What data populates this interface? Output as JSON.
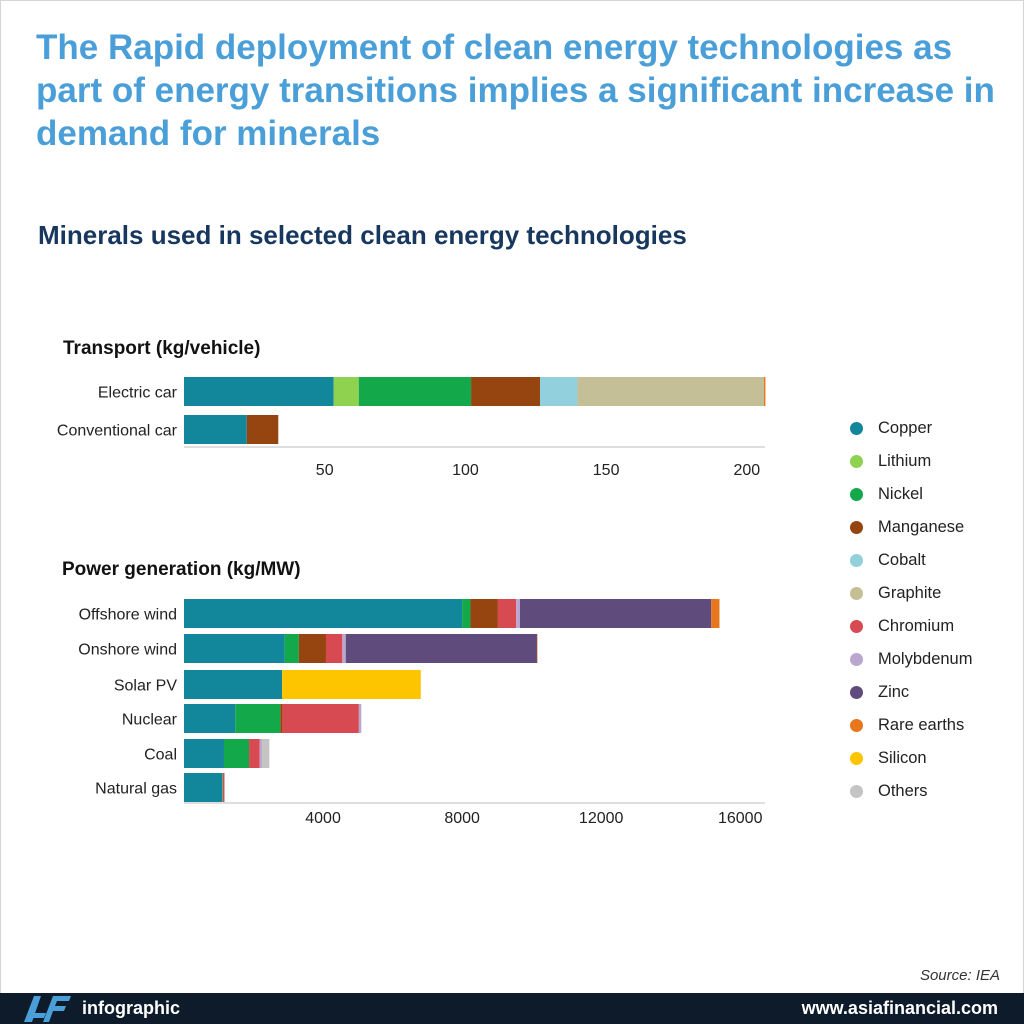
{
  "headline": "The Rapid deployment of clean energy technologies as part of energy transitions implies a significant increase in demand for minerals",
  "subtitle": "Minerals used in selected clean energy technologies",
  "minerals": [
    "Copper",
    "Lithium",
    "Nickel",
    "Manganese",
    "Cobalt",
    "Graphite",
    "Chromium",
    "Molybdenum",
    "Zinc",
    "Rare earths",
    "Silicon",
    "Others"
  ],
  "colors": {
    "Copper": "#12869b",
    "Lithium": "#8ed24f",
    "Nickel": "#13a84a",
    "Manganese": "#974510",
    "Cobalt": "#92d0dd",
    "Graphite": "#c5bf98",
    "Chromium": "#d84a52",
    "Molybdenum": "#b9a7d0",
    "Zinc": "#604b7d",
    "Rare earths": "#e8761c",
    "Silicon": "#fdc500",
    "Others": "#c4c4c4"
  },
  "chart_data": [
    {
      "type": "bar",
      "orientation": "horizontal",
      "stacked": true,
      "title": "Transport (kg/vehicle)",
      "categories": [
        "Electric car",
        "Conventional car"
      ],
      "xlim": [
        0,
        210
      ],
      "ticks": [
        50,
        100,
        150,
        200
      ],
      "tick_labels": [
        "50",
        "100",
        "150",
        "200"
      ],
      "series": [
        {
          "name": "Copper",
          "values": [
            53.2,
            22.3
          ]
        },
        {
          "name": "Lithium",
          "values": [
            8.9,
            0
          ]
        },
        {
          "name": "Nickel",
          "values": [
            39.9,
            0
          ]
        },
        {
          "name": "Manganese",
          "values": [
            24.5,
            11.2
          ]
        },
        {
          "name": "Cobalt",
          "values": [
            13.3,
            0
          ]
        },
        {
          "name": "Graphite",
          "values": [
            66.3,
            0
          ]
        },
        {
          "name": "Rare earths",
          "values": [
            0.5,
            0
          ]
        }
      ]
    },
    {
      "type": "bar",
      "orientation": "horizontal",
      "stacked": true,
      "title": "Power generation (kg/MW)",
      "categories": [
        "Offshore wind",
        "Onshore wind",
        "Solar PV",
        "Nuclear",
        "Coal",
        "Natural gas"
      ],
      "xlim": [
        0,
        17000
      ],
      "ticks": [
        4000,
        8000,
        12000,
        16000
      ],
      "tick_labels": [
        "4000",
        "8000",
        "12000",
        "16000"
      ],
      "series": [
        {
          "name": "Copper",
          "values": [
            8000,
            2900,
            2822,
            1473,
            1150,
            1100
          ]
        },
        {
          "name": "Nickel",
          "values": [
            240,
            404,
            0,
            1297,
            721,
            16
          ]
        },
        {
          "name": "Manganese",
          "values": [
            790,
            780,
            0,
            70,
            0,
            0
          ]
        },
        {
          "name": "Chromium",
          "values": [
            525,
            470,
            0,
            2190,
            308,
            48
          ]
        },
        {
          "name": "Molybdenum",
          "values": [
            109,
            99,
            0,
            70,
            66,
            0
          ]
        },
        {
          "name": "Zinc",
          "values": [
            5500,
            5500,
            0,
            0,
            0,
            0
          ]
        },
        {
          "name": "Rare earths",
          "values": [
            239,
            14,
            0,
            0,
            0,
            0
          ]
        },
        {
          "name": "Silicon",
          "values": [
            0,
            0,
            3990,
            0,
            0,
            0
          ]
        },
        {
          "name": "Others",
          "values": [
            0,
            0,
            0,
            0,
            210,
            0
          ]
        }
      ]
    }
  ],
  "source": "Source: IEA",
  "footer": {
    "brand": "infographic",
    "url": "www.asiafinancial.com"
  }
}
